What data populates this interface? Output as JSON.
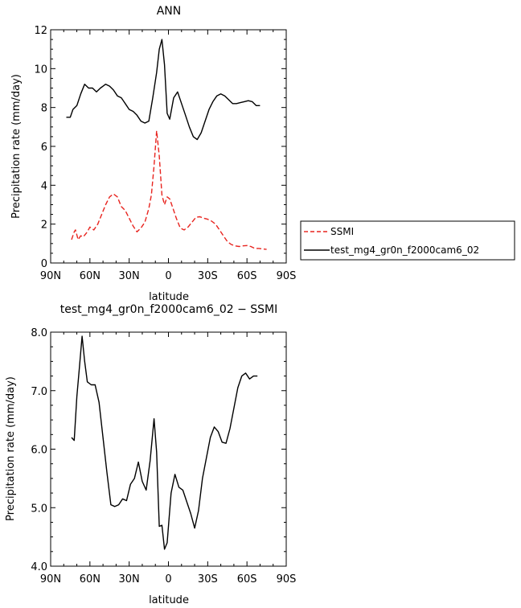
{
  "chart_data": [
    {
      "type": "line",
      "title": "ANN",
      "xlabel": "latitude",
      "ylabel": "Precipitation rate  (mm/day)",
      "xlim": [
        90,
        -90
      ],
      "ylim": [
        0,
        12
      ],
      "xticks": [
        90,
        60,
        30,
        0,
        -30,
        -60,
        -90
      ],
      "xtick_labels": [
        "90N",
        "60N",
        "30N",
        "0",
        "30S",
        "60S",
        "90S"
      ],
      "yticks": [
        0,
        2,
        4,
        6,
        8,
        10,
        12
      ],
      "ytick_labels": [
        "0",
        "2",
        "4",
        "6",
        "8",
        "10",
        "12"
      ],
      "legend_position": "right",
      "series": [
        {
          "name": "SSMI",
          "color": "#e8241f",
          "dash": "dashed",
          "x": [
            74,
            72,
            71,
            69,
            67,
            65,
            62,
            60,
            57,
            54,
            51,
            48,
            45,
            42,
            39,
            36,
            33,
            30,
            27,
            24,
            21,
            18,
            15,
            13,
            11,
            9,
            7,
            5,
            3,
            1,
            -1,
            -3,
            -6,
            -9,
            -12,
            -15,
            -18,
            -21,
            -24,
            -27,
            -30,
            -33,
            -36,
            -39,
            -42,
            -45,
            -48,
            -51,
            -54,
            -57,
            -60,
            -63,
            -66,
            -69,
            -72,
            -75
          ],
          "y": [
            1.2,
            1.6,
            1.7,
            1.2,
            1.4,
            1.35,
            1.6,
            1.85,
            1.7,
            2.0,
            2.5,
            3.0,
            3.4,
            3.55,
            3.4,
            2.9,
            2.7,
            2.3,
            1.9,
            1.6,
            1.8,
            2.1,
            2.8,
            3.5,
            5.0,
            6.8,
            5.5,
            3.5,
            3.0,
            3.4,
            3.3,
            2.9,
            2.3,
            1.8,
            1.7,
            1.85,
            2.1,
            2.35,
            2.38,
            2.3,
            2.25,
            2.15,
            2.0,
            1.7,
            1.4,
            1.1,
            0.95,
            0.88,
            0.85,
            0.88,
            0.9,
            0.85,
            0.75,
            0.75,
            0.72,
            0.7
          ]
        },
        {
          "name": "test_mg4_gr0n_f2000cam6_02",
          "color": "#000000",
          "dash": "solid",
          "x": [
            78,
            75,
            73,
            70,
            67,
            64,
            61,
            58,
            55,
            52,
            48,
            45,
            42,
            39,
            36,
            33,
            30,
            27,
            24,
            21,
            18,
            15,
            12,
            9,
            7,
            5,
            3,
            1,
            -1,
            -4,
            -7,
            -10,
            -13,
            -16,
            -19,
            -22,
            -25,
            -28,
            -31,
            -34,
            -37,
            -40,
            -43,
            -46,
            -49,
            -52,
            -55,
            -58,
            -61,
            -64,
            -67,
            -70
          ],
          "y": [
            7.5,
            7.5,
            7.9,
            8.1,
            8.7,
            9.2,
            9.0,
            9.0,
            8.8,
            9.0,
            9.2,
            9.1,
            8.9,
            8.6,
            8.5,
            8.2,
            7.9,
            7.8,
            7.6,
            7.3,
            7.2,
            7.3,
            8.5,
            9.8,
            11.0,
            11.5,
            10.2,
            7.7,
            7.4,
            8.5,
            8.8,
            8.2,
            7.6,
            7.0,
            6.5,
            6.35,
            6.7,
            7.3,
            7.9,
            8.3,
            8.6,
            8.7,
            8.6,
            8.4,
            8.2,
            8.2,
            8.25,
            8.3,
            8.35,
            8.3,
            8.1,
            8.1
          ]
        }
      ]
    },
    {
      "type": "line",
      "title": "test_mg4_gr0n_f2000cam6_02 − SSMI",
      "xlabel": "latitude",
      "ylabel": "Precipitation rate  (mm/day)",
      "xlim": [
        90,
        -90
      ],
      "ylim": [
        4.0,
        8.0
      ],
      "xticks": [
        90,
        60,
        30,
        0,
        -30,
        -60,
        -90
      ],
      "xtick_labels": [
        "90N",
        "60N",
        "30N",
        "0",
        "30S",
        "60S",
        "90S"
      ],
      "yticks": [
        4.0,
        5.0,
        6.0,
        7.0,
        8.0
      ],
      "ytick_labels": [
        "4.0",
        "5.0",
        "6.0",
        "7.0",
        "8.0"
      ],
      "series": [
        {
          "color": "#000000",
          "dash": "solid",
          "x": [
            74,
            72,
            70,
            68,
            66,
            64,
            62,
            59,
            56,
            53,
            50,
            47,
            44,
            41,
            38,
            35,
            32,
            29,
            26,
            23,
            20,
            17,
            14,
            11,
            9,
            7,
            5,
            3,
            1,
            -2,
            -5,
            -8,
            -11,
            -14,
            -17,
            -20,
            -23,
            -26,
            -29,
            -32,
            -35,
            -38,
            -41,
            -44,
            -47,
            -50,
            -53,
            -56,
            -59,
            -62,
            -65,
            -68
          ],
          "y": [
            6.2,
            6.15,
            6.9,
            7.4,
            7.93,
            7.5,
            7.15,
            7.1,
            7.1,
            6.8,
            6.2,
            5.6,
            5.05,
            5.02,
            5.05,
            5.15,
            5.12,
            5.4,
            5.5,
            5.78,
            5.45,
            5.3,
            5.8,
            6.52,
            5.95,
            4.68,
            4.7,
            4.29,
            4.4,
            5.25,
            5.57,
            5.35,
            5.3,
            5.1,
            4.9,
            4.65,
            4.95,
            5.5,
            5.85,
            6.2,
            6.38,
            6.3,
            6.12,
            6.1,
            6.35,
            6.7,
            7.05,
            7.25,
            7.3,
            7.2,
            7.25,
            7.25
          ]
        }
      ]
    }
  ]
}
